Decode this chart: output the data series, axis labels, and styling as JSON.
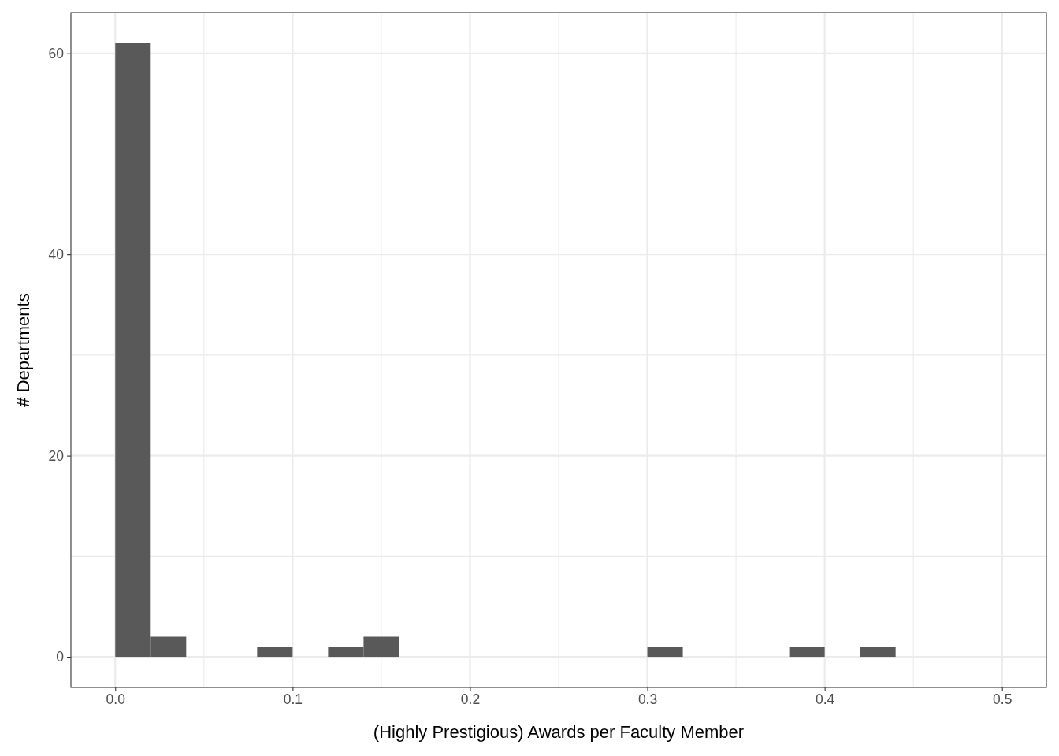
{
  "chart_data": {
    "type": "histogram",
    "xlabel": "(Highly Prestigious) Awards per Faculty Member",
    "ylabel": "# Departments",
    "bins": [
      0,
      0.02,
      0.04,
      0.06,
      0.08,
      0.1,
      0.12,
      0.14,
      0.16,
      0.18,
      0.2,
      0.22,
      0.24,
      0.26,
      0.28,
      0.3,
      0.32,
      0.34,
      0.36,
      0.38,
      0.4,
      0.42,
      0.44,
      0.46,
      0.48,
      0.5
    ],
    "values": [
      61,
      2,
      0,
      0,
      1,
      0,
      1,
      2,
      0,
      0,
      0,
      0,
      0,
      0,
      0,
      1,
      0,
      0,
      0,
      1,
      0,
      1,
      0,
      0,
      0
    ],
    "color": "#595959",
    "xlim": [
      -0.025,
      0.525
    ],
    "xticks": [
      {
        "value": 0,
        "label": "0.0"
      },
      {
        "value": 0.1,
        "label": "0.1"
      },
      {
        "value": 0.2,
        "label": "0.2"
      },
      {
        "value": 0.3,
        "label": "0.3"
      },
      {
        "value": 0.4,
        "label": "0.4"
      },
      {
        "value": 0.5,
        "label": "0.5"
      }
    ],
    "ylim": [
      -3.05,
      64.05
    ],
    "yticks": [
      0,
      20,
      40,
      60
    ],
    "grid": true
  }
}
